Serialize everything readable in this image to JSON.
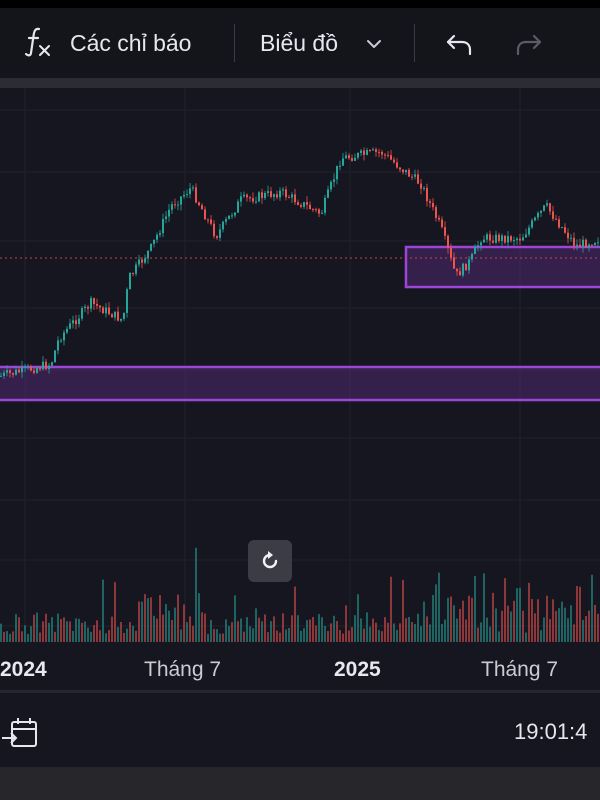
{
  "toolbar": {
    "indicators_label": "Các chỉ báo",
    "chart_label": "Biểu đồ",
    "indicators_icon": "function-fx-icon",
    "dropdown_icon": "chevron-down-icon",
    "undo_icon": "undo-icon",
    "redo_icon": "redo-icon"
  },
  "chart": {
    "reset_icon": "reset-rotate-icon",
    "zone_color": "#8b3fc9",
    "price_line_color": "#c2474f",
    "candle_up_color": "#26a69a",
    "candle_down_color": "#ef5350"
  },
  "axis": {
    "labels": [
      "2024",
      "Tháng 7",
      "2025",
      "Tháng 7"
    ]
  },
  "bottom": {
    "calendar_icon": "calendar-goto-icon",
    "time": "19:01:4"
  }
}
